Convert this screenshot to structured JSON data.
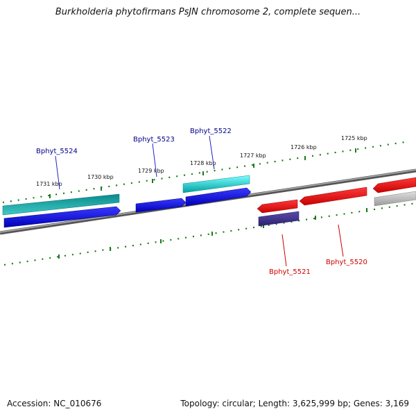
{
  "header": {
    "title": "Burkholderia phytofirmans PsJN chromosome 2, complete sequen..."
  },
  "footer": {
    "accession": "Accession: NC_010676",
    "summary": "Topology: circular; Length: 3,625,999 bp; Genes: 3,169"
  },
  "ruler": {
    "labels": [
      "1731 kbp",
      "1730 kbp",
      "1729 kbp",
      "1728 kbp",
      "1727 kbp",
      "1726 kbp",
      "1725 kbp"
    ]
  },
  "genes": {
    "forward_labels": [
      "Bphyt_5524",
      "Bphyt_5523",
      "Bphyt_5522"
    ],
    "reverse_labels": [
      "Bphyt_5521",
      "Bphyt_5520"
    ]
  },
  "colors": {
    "forward_label": "#00008b",
    "reverse_label": "#cc0000",
    "tick": "#1a7a1a",
    "backbone": "#808080"
  }
}
